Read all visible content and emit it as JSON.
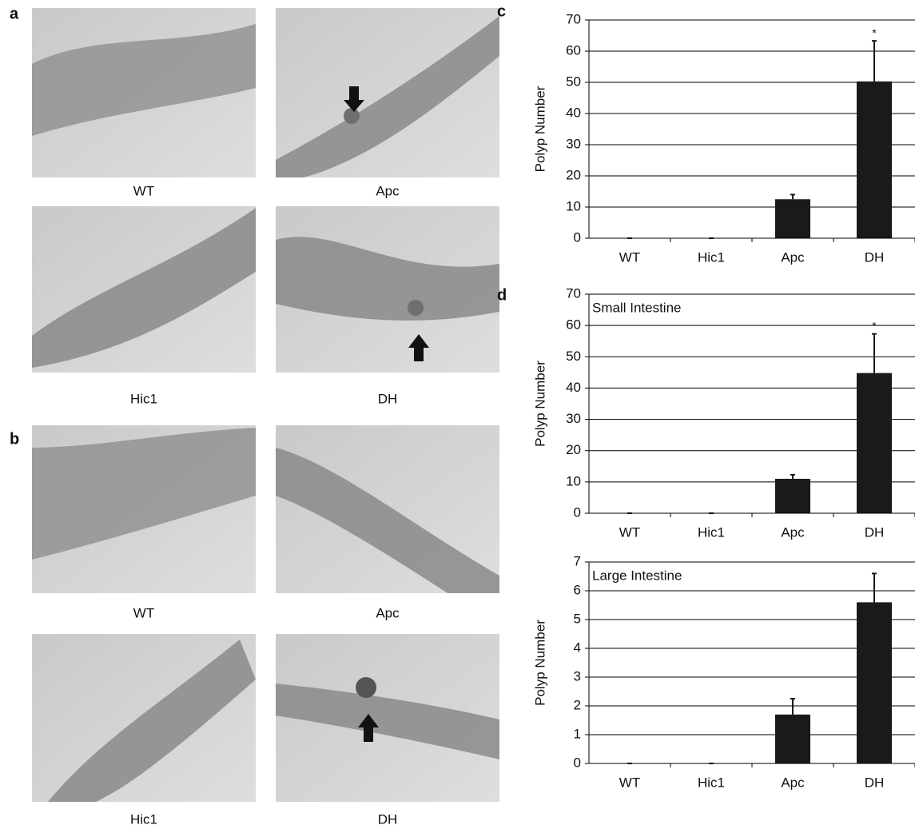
{
  "figure": {
    "panel_labels": [
      "a",
      "b",
      "c",
      "d"
    ],
    "captions_a": [
      "WT",
      "Apc",
      "Hic1",
      "DH"
    ],
    "captions_b": [
      "WT",
      "Apc",
      "Hic1",
      "DH"
    ]
  },
  "chart_data": [
    {
      "type": "bar",
      "ylabel": "Polyp Number",
      "annotation": "*",
      "categories": [
        "WT",
        "Hic1",
        "Apc",
        "DH"
      ],
      "values": [
        0,
        0,
        12.5,
        50.3
      ],
      "errors": [
        0,
        0,
        1.5,
        13
      ],
      "color": "#1a1a1a",
      "ylim": [
        0,
        70
      ],
      "yticks": [
        0,
        10,
        20,
        30,
        40,
        50,
        60,
        70
      ],
      "grid": true
    },
    {
      "type": "bar",
      "title": "Small Intestine",
      "ylabel": "Polyp Number",
      "annotation": "*",
      "categories": [
        "WT",
        "Hic1",
        "Apc",
        "DH"
      ],
      "values": [
        0,
        0,
        11,
        44.8
      ],
      "errors": [
        0,
        0,
        1.3,
        12.5
      ],
      "color": "#1a1a1a",
      "ylim": [
        0,
        70
      ],
      "yticks": [
        0,
        10,
        20,
        30,
        40,
        50,
        60,
        70
      ],
      "grid": true
    },
    {
      "type": "bar",
      "title": "Large Intestine",
      "ylabel": "Polyp Number",
      "categories": [
        "WT",
        "Hic1",
        "Apc",
        "DH"
      ],
      "values": [
        0,
        0,
        1.7,
        5.6
      ],
      "errors": [
        0,
        0,
        0.55,
        1.0
      ],
      "color": "#1a1a1a",
      "ylim": [
        0,
        7
      ],
      "yticks": [
        0,
        1,
        2,
        3,
        4,
        5,
        6,
        7
      ],
      "grid": true
    }
  ]
}
